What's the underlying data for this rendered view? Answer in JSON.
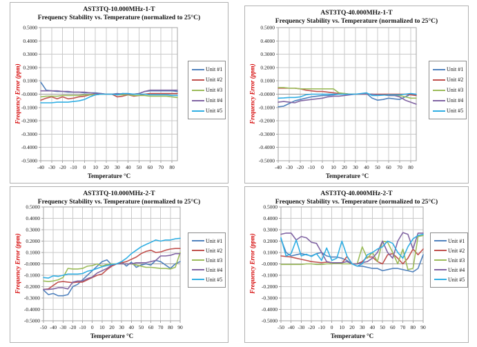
{
  "page": {
    "background": "#ffffff",
    "grid_color": "#c9c9c9",
    "plot_border_color": "#a3a3a3",
    "zero_axis_color": "#9a9a9a",
    "card_border_color": "#b0b0b0",
    "y_title_color": "#d40000"
  },
  "chart_data": [
    {
      "type": "line",
      "title": "AST3TQ-10.000MHz-1-T",
      "subtitle": "Frequency Stability vs. Temperature (normalized to 25°C)",
      "xlabel": "Temperature °C",
      "ylabel": "Frequency Error (ppm)",
      "ylim": [
        -0.5,
        0.5
      ],
      "ytick_step": 0.1,
      "ytick_decimals": 4,
      "xlim": [
        -40,
        85
      ],
      "xticks": [
        -40,
        -30,
        -20,
        -10,
        0,
        10,
        20,
        30,
        40,
        50,
        60,
        70,
        80
      ],
      "x_start": -40,
      "x_step": 5,
      "grid": true,
      "legend_position": "right",
      "legend_labels": [
        "Unit #1",
        "Unit #2",
        "Unit #3",
        "Unit #4",
        "Unit #5"
      ],
      "series": [
        {
          "name": "Unit #1",
          "color": "#4F81BD",
          "values": [
            0.09,
            0.03,
            0.025,
            0.02,
            0.02,
            0.015,
            0.015,
            0.015,
            0.01,
            0.01,
            0.01,
            0.005,
            0,
            0,
            0.005,
            0,
            0,
            0,
            0.005,
            0.02,
            0.025,
            0.025,
            0.025,
            0.025,
            0.025,
            0.02
          ]
        },
        {
          "name": "Unit #2",
          "color": "#C0504D",
          "values": [
            -0.045,
            -0.03,
            -0.02,
            -0.035,
            -0.02,
            -0.035,
            -0.03,
            -0.02,
            -0.015,
            -0.005,
            -0.005,
            0,
            0,
            0,
            -0.02,
            -0.015,
            -0.005,
            -0.015,
            -0.01,
            0,
            0.005,
            0.005,
            0.005,
            0.005,
            0.005,
            0.005
          ]
        },
        {
          "name": "Unit #3",
          "color": "#9BBB59",
          "values": [
            -0.02,
            -0.015,
            -0.015,
            -0.015,
            -0.01,
            -0.01,
            -0.01,
            -0.01,
            -0.005,
            -0.005,
            -0.005,
            0,
            0,
            0,
            -0.005,
            -0.005,
            -0.005,
            -0.01,
            -0.01,
            -0.01,
            -0.015,
            -0.015,
            -0.015,
            -0.015,
            -0.02,
            -0.025
          ]
        },
        {
          "name": "Unit #4",
          "color": "#8064A2",
          "values": [
            0.025,
            0.025,
            0.025,
            0.025,
            0.02,
            0.02,
            0.015,
            0.015,
            0.015,
            0.01,
            0.005,
            0.005,
            0,
            0,
            0,
            0.005,
            0,
            0,
            0.005,
            0.02,
            0.03,
            0.03,
            0.03,
            0.03,
            0.03,
            0.03
          ]
        },
        {
          "name": "Unit #5",
          "color": "#2FAEE3",
          "values": [
            -0.065,
            -0.065,
            -0.065,
            -0.06,
            -0.06,
            -0.06,
            -0.055,
            -0.05,
            -0.04,
            -0.02,
            -0.005,
            0,
            0,
            0,
            -0.005,
            0.005,
            0.005,
            0,
            0,
            0,
            -0.005,
            -0.005,
            -0.005,
            -0.005,
            -0.01,
            -0.01
          ]
        }
      ]
    },
    {
      "type": "line",
      "title": "AST3TQ-40.000MHz-1-T",
      "subtitle": "Frequency Stability vs. Temperature (normalized to 25°C)",
      "xlabel": "Temperature °C",
      "ylabel": "Frequency Error (ppm)",
      "ylim": [
        -0.5,
        0.5
      ],
      "ytick_step": 0.1,
      "ytick_decimals": 4,
      "xlim": [
        -40,
        85
      ],
      "xticks": [
        -40,
        -30,
        -20,
        -10,
        0,
        10,
        20,
        30,
        40,
        50,
        60,
        70,
        80
      ],
      "x_start": -40,
      "x_step": 5,
      "grid": true,
      "legend_position": "right",
      "legend_labels": [
        "Unit #1",
        "Unit #2",
        "Unit #3",
        "Unit #4",
        "Unit #5"
      ],
      "series": [
        {
          "name": "Unit #1",
          "color": "#4F81BD",
          "values": [
            -0.095,
            -0.09,
            -0.07,
            -0.05,
            -0.04,
            -0.03,
            -0.02,
            -0.015,
            -0.01,
            -0.01,
            -0.005,
            0,
            0,
            0,
            0,
            0,
            0.005,
            -0.03,
            -0.045,
            -0.04,
            -0.03,
            -0.035,
            -0.04,
            -0.02,
            0,
            -0.005
          ]
        },
        {
          "name": "Unit #2",
          "color": "#C0504D",
          "values": [
            0.045,
            0.045,
            0.045,
            0.045,
            0.04,
            0.03,
            0.025,
            0.02,
            0.02,
            0.015,
            0.01,
            0.005,
            0.005,
            0,
            0,
            0,
            0,
            0,
            0,
            0,
            0,
            0,
            0,
            0,
            -0.005,
            -0.01
          ]
        },
        {
          "name": "Unit #3",
          "color": "#9BBB59",
          "values": [
            0.05,
            0.05,
            0.045,
            0.045,
            0.04,
            0.04,
            0.04,
            0.04,
            0.04,
            0.04,
            0.04,
            0.01,
            0.005,
            0,
            0,
            0,
            0,
            0,
            -0.005,
            -0.005,
            -0.01,
            -0.01,
            -0.01,
            -0.02,
            -0.03,
            -0.03
          ]
        },
        {
          "name": "Unit #4",
          "color": "#8064A2",
          "values": [
            -0.06,
            -0.055,
            -0.06,
            -0.065,
            -0.05,
            -0.045,
            -0.04,
            -0.035,
            -0.03,
            -0.02,
            -0.015,
            -0.015,
            -0.01,
            -0.005,
            0,
            0,
            0,
            0,
            -0.005,
            -0.005,
            -0.01,
            -0.01,
            -0.02,
            -0.045,
            -0.06,
            -0.075
          ]
        },
        {
          "name": "Unit #5",
          "color": "#2FAEE3",
          "values": [
            -0.03,
            -0.028,
            -0.025,
            -0.025,
            -0.02,
            -0.005,
            0,
            0,
            0,
            0,
            0,
            0,
            0,
            0,
            0,
            0.005,
            0.01,
            -0.01,
            -0.01,
            -0.008,
            -0.005,
            -0.005,
            -0.005,
            0,
            0.005,
            0
          ]
        }
      ]
    },
    {
      "type": "line",
      "title": "AST3TQ-10.000MHz-2-T",
      "subtitle": "Frequency Stability vs. Temperature (normalized to 25°C)",
      "xlabel": "Temperature °C",
      "ylabel": "Frequency Error (ppm)",
      "ylim": [
        -0.5,
        0.5
      ],
      "ytick_step": 0.1,
      "ytick_decimals": 4,
      "xlim": [
        -50,
        90
      ],
      "xticks": [
        -50,
        -40,
        -30,
        -20,
        -10,
        0,
        10,
        20,
        30,
        40,
        50,
        60,
        70,
        80,
        90
      ],
      "x_start": -50,
      "x_step": 5,
      "grid": true,
      "legend_position": "right",
      "legend_labels": [
        "Unit #1",
        "Unit #2",
        "Unit #3",
        "Unit #4",
        "Unit #5"
      ],
      "series": [
        {
          "name": "Unit #1",
          "color": "#4F81BD",
          "values": [
            -0.23,
            -0.27,
            -0.26,
            -0.28,
            -0.28,
            -0.27,
            -0.2,
            -0.18,
            -0.14,
            -0.1,
            -0.06,
            -0.02,
            0.02,
            0.035,
            -0.01,
            0,
            0.02,
            -0.02,
            0.015,
            -0.03,
            -0.01,
            0,
            -0.01,
            0.03,
            0.02,
            -0.01,
            -0.04,
            0,
            0.02
          ]
        },
        {
          "name": "Unit #2",
          "color": "#C0504D",
          "values": [
            -0.225,
            -0.22,
            -0.19,
            -0.16,
            -0.155,
            -0.16,
            -0.165,
            -0.16,
            -0.16,
            -0.14,
            -0.12,
            -0.1,
            -0.09,
            -0.05,
            -0.02,
            0,
            0.01,
            0.02,
            0.04,
            0.06,
            0.09,
            0.11,
            0.12,
            0.1,
            0.105,
            0.12,
            0.13,
            0.135,
            0.135
          ]
        },
        {
          "name": "Unit #3",
          "color": "#9BBB59",
          "values": [
            -0.15,
            -0.155,
            -0.15,
            -0.14,
            -0.12,
            -0.04,
            -0.045,
            -0.045,
            -0.04,
            -0.02,
            -0.015,
            0,
            -0.02,
            -0.005,
            0,
            0,
            0,
            0,
            0,
            -0.01,
            -0.02,
            -0.03,
            -0.03,
            -0.035,
            -0.04,
            -0.04,
            -0.045,
            -0.03,
            0.1
          ]
        },
        {
          "name": "Unit #4",
          "color": "#8064A2",
          "values": [
            -0.225,
            -0.225,
            -0.22,
            -0.21,
            -0.21,
            -0.22,
            -0.16,
            -0.15,
            -0.15,
            -0.13,
            -0.115,
            -0.08,
            -0.06,
            -0.04,
            -0.01,
            0,
            0,
            0,
            0,
            0.01,
            0.01,
            0.01,
            0.02,
            0.03,
            0.07,
            0.07,
            0.075,
            0.09,
            0.09
          ]
        },
        {
          "name": "Unit #5",
          "color": "#2FAEE3",
          "values": [
            -0.12,
            -0.125,
            -0.105,
            -0.11,
            -0.1,
            -0.09,
            -0.09,
            -0.09,
            -0.085,
            -0.065,
            -0.055,
            -0.04,
            -0.025,
            -0.015,
            -0.005,
            0,
            0.02,
            0.05,
            0.09,
            0.12,
            0.15,
            0.17,
            0.19,
            0.21,
            0.2,
            0.21,
            0.21,
            0.22,
            0.225
          ]
        }
      ]
    },
    {
      "type": "line",
      "title": "AST3TQ-40.000MHz-2-T",
      "subtitle": "Frequency Stability vs. Temperature (normalized to 25°C)",
      "xlabel": "Temperature °C",
      "ylabel": "Frequency Error (ppm)",
      "ylim": [
        -0.5,
        0.5
      ],
      "ytick_step": 0.1,
      "ytick_decimals": 4,
      "xlim": [
        -50,
        90
      ],
      "xticks": [
        -50,
        -40,
        -30,
        -20,
        -10,
        0,
        10,
        20,
        30,
        40,
        50,
        60,
        70,
        80,
        90
      ],
      "x_start": -50,
      "x_step": 5,
      "grid": true,
      "legend_position": "right",
      "legend_labels": [
        "Unit #1",
        "Unit #2",
        "Unit #3",
        "Unit #4",
        "Unit #5"
      ],
      "series": [
        {
          "name": "Unit #1",
          "color": "#4F81BD",
          "values": [
            0.22,
            0.1,
            0.07,
            0.08,
            0.09,
            0.08,
            0.07,
            0.09,
            0.1,
            0.07,
            0.06,
            0.06,
            0.05,
            0.03,
            0,
            -0.02,
            -0.02,
            -0.03,
            -0.04,
            -0.04,
            -0.06,
            -0.05,
            -0.04,
            -0.04,
            -0.05,
            -0.06,
            -0.07,
            -0.04,
            0.08
          ]
        },
        {
          "name": "Unit #2",
          "color": "#C0504D",
          "values": [
            0.07,
            0.065,
            0.06,
            0.05,
            0.04,
            0.03,
            0.02,
            0.015,
            0.01,
            0.015,
            0.01,
            0.01,
            0.005,
            0.065,
            0,
            0,
            0.02,
            0.06,
            0.06,
            0.02,
            0,
            0.08,
            0.09,
            0.05,
            0,
            0.05,
            0.13,
            0.08,
            0.13
          ]
        },
        {
          "name": "Unit #3",
          "color": "#9BBB59",
          "values": [
            -0.005,
            -0.005,
            -0.005,
            -0.005,
            -0.005,
            0,
            0,
            -0.005,
            -0.005,
            0,
            0,
            0.005,
            0,
            0,
            0,
            0,
            0.15,
            0.05,
            0.1,
            0.02,
            0.2,
            0.19,
            0.1,
            0,
            0.13,
            -0.05,
            -0.04,
            0.24,
            0.25
          ]
        },
        {
          "name": "Unit #4",
          "color": "#8064A2",
          "values": [
            0.26,
            0.27,
            0.27,
            0.21,
            0.24,
            0.23,
            0.19,
            0.18,
            0.1,
            0.02,
            0.01,
            0.01,
            0.01,
            0.02,
            0,
            0,
            0.01,
            0.02,
            0.05,
            0.1,
            0.2,
            0.1,
            0.05,
            0.2,
            0.275,
            0.26,
            0.13,
            0.27,
            0.27
          ]
        },
        {
          "name": "Unit #5",
          "color": "#2FAEE3",
          "values": [
            0.23,
            0.07,
            0.09,
            0.21,
            0.07,
            0.085,
            0.065,
            0.09,
            0.03,
            0.14,
            0.03,
            0.05,
            0.2,
            0.07,
            0,
            -0.02,
            0,
            0.08,
            0.1,
            0.13,
            0.15,
            0.2,
            0.18,
            0.1,
            0.05,
            0.15,
            0.22,
            0.25,
            0.26
          ]
        }
      ]
    }
  ]
}
